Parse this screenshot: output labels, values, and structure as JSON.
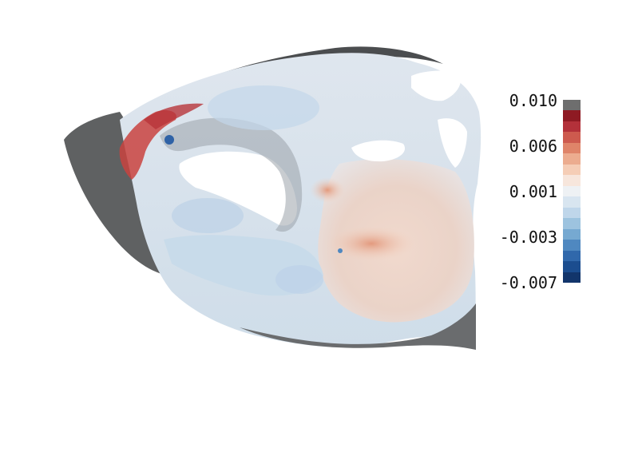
{
  "colorbar": {
    "ticks": [
      "0.010",
      "0.006",
      "0.001",
      "-0.003",
      "-0.007"
    ],
    "colors": [
      "#6e6e6e",
      "#8e1a23",
      "#b3313a",
      "#cd5a4e",
      "#df8469",
      "#ecac8f",
      "#f5cdb6",
      "#f7e6dc",
      "#eef1f4",
      "#d8e5f0",
      "#bfd6ea",
      "#9dc3df",
      "#76a9d1",
      "#4f88c0",
      "#3068ab",
      "#1b4d8f",
      "#12356b"
    ]
  }
}
